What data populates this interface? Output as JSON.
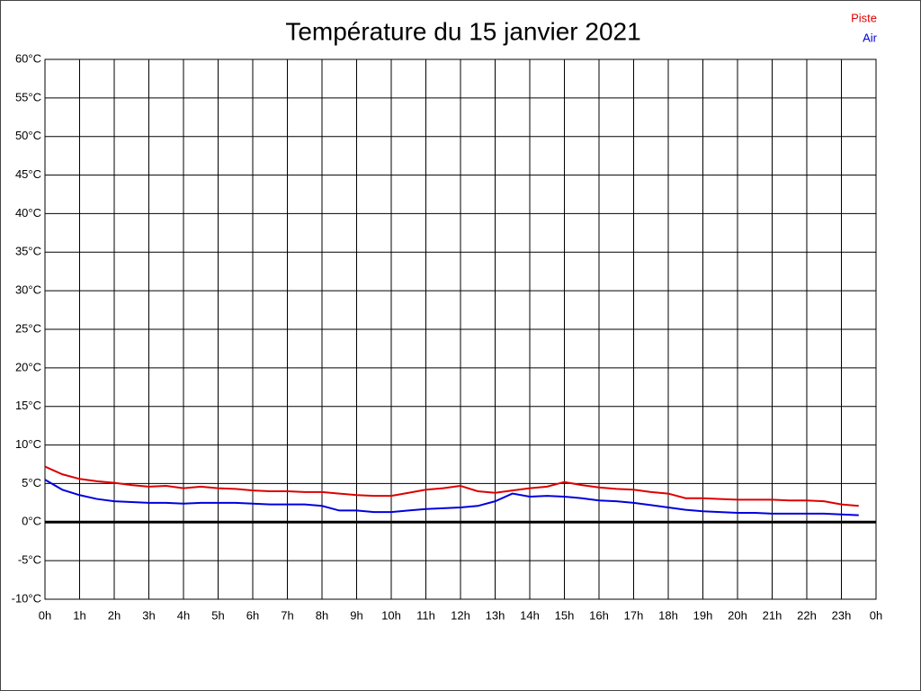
{
  "chart_data": {
    "type": "line",
    "title": "Température du 15 janvier 2021",
    "x": [
      0,
      0.5,
      1,
      1.5,
      2,
      2.5,
      3,
      3.5,
      4,
      4.5,
      5,
      5.5,
      6,
      6.5,
      7,
      7.5,
      8,
      8.5,
      9,
      9.5,
      10,
      10.5,
      11,
      11.5,
      12,
      12.5,
      13,
      13.5,
      14,
      14.5,
      15,
      15.5,
      16,
      16.5,
      17,
      17.5,
      18,
      18.5,
      19,
      19.5,
      20,
      20.5,
      21,
      21.5,
      22,
      22.5,
      23,
      23.5
    ],
    "series": [
      {
        "name": "Piste",
        "color": "#dd0000",
        "values": [
          7.2,
          6.2,
          5.6,
          5.3,
          5.1,
          4.8,
          4.6,
          4.7,
          4.4,
          4.6,
          4.4,
          4.3,
          4.1,
          4.0,
          4.0,
          3.9,
          3.9,
          3.7,
          3.5,
          3.4,
          3.4,
          3.8,
          4.2,
          4.4,
          4.7,
          4.0,
          3.8,
          4.1,
          4.4,
          4.6,
          5.2,
          4.8,
          4.5,
          4.3,
          4.2,
          3.9,
          3.7,
          3.1,
          3.1,
          3.0,
          2.9,
          2.9,
          2.9,
          2.8,
          2.8,
          2.7,
          2.3,
          2.1
        ]
      },
      {
        "name": "Air",
        "color": "#0000dd",
        "values": [
          5.5,
          4.2,
          3.5,
          3.0,
          2.7,
          2.6,
          2.5,
          2.5,
          2.4,
          2.5,
          2.5,
          2.5,
          2.4,
          2.3,
          2.3,
          2.3,
          2.1,
          1.5,
          1.5,
          1.3,
          1.3,
          1.5,
          1.7,
          1.8,
          1.9,
          2.1,
          2.7,
          3.7,
          3.3,
          3.4,
          3.3,
          3.1,
          2.8,
          2.7,
          2.5,
          2.2,
          1.9,
          1.6,
          1.4,
          1.3,
          1.2,
          1.2,
          1.1,
          1.1,
          1.1,
          1.1,
          1.0,
          0.9
        ]
      }
    ],
    "xlim": [
      0,
      24
    ],
    "xticks": [
      {
        "value": 0,
        "label": "0h"
      },
      {
        "value": 1,
        "label": "1h"
      },
      {
        "value": 2,
        "label": "2h"
      },
      {
        "value": 3,
        "label": "3h"
      },
      {
        "value": 4,
        "label": "4h"
      },
      {
        "value": 5,
        "label": "5h"
      },
      {
        "value": 6,
        "label": "6h"
      },
      {
        "value": 7,
        "label": "7h"
      },
      {
        "value": 8,
        "label": "8h"
      },
      {
        "value": 9,
        "label": "9h"
      },
      {
        "value": 10,
        "label": "10h"
      },
      {
        "value": 11,
        "label": "11h"
      },
      {
        "value": 12,
        "label": "12h"
      },
      {
        "value": 13,
        "label": "13h"
      },
      {
        "value": 14,
        "label": "14h"
      },
      {
        "value": 15,
        "label": "15h"
      },
      {
        "value": 16,
        "label": "16h"
      },
      {
        "value": 17,
        "label": "17h"
      },
      {
        "value": 18,
        "label": "18h"
      },
      {
        "value": 19,
        "label": "19h"
      },
      {
        "value": 20,
        "label": "20h"
      },
      {
        "value": 21,
        "label": "21h"
      },
      {
        "value": 22,
        "label": "22h"
      },
      {
        "value": 23,
        "label": "23h"
      },
      {
        "value": 24,
        "label": "0h"
      }
    ],
    "ylim": [
      -10,
      60
    ],
    "yticks": [
      {
        "value": -10,
        "label": "-10°C"
      },
      {
        "value": -5,
        "label": "-5°C"
      },
      {
        "value": 0,
        "label": "0°C"
      },
      {
        "value": 5,
        "label": "5°C"
      },
      {
        "value": 10,
        "label": "10°C"
      },
      {
        "value": 15,
        "label": "15°C"
      },
      {
        "value": 20,
        "label": "20°C"
      },
      {
        "value": 25,
        "label": "25°C"
      },
      {
        "value": 30,
        "label": "30°C"
      },
      {
        "value": 35,
        "label": "35°C"
      },
      {
        "value": 40,
        "label": "40°C"
      },
      {
        "value": 45,
        "label": "45°C"
      },
      {
        "value": 50,
        "label": "50°C"
      },
      {
        "value": 55,
        "label": "55°C"
      },
      {
        "value": 60,
        "label": "60°C"
      }
    ],
    "grid": true,
    "legend": "top-right"
  }
}
